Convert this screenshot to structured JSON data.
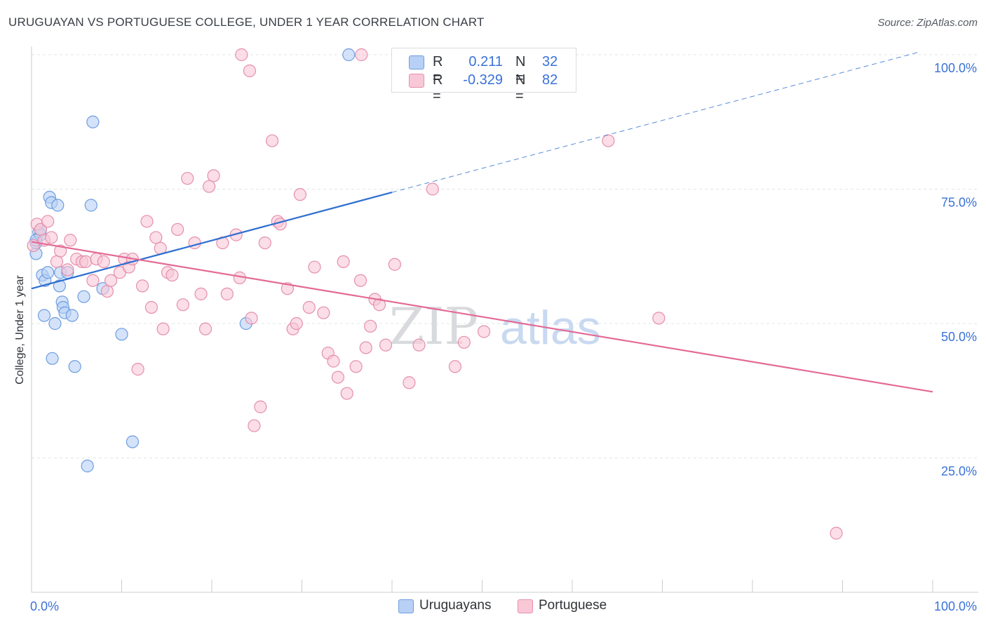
{
  "title": "URUGUAYAN VS PORTUGUESE COLLEGE, UNDER 1 YEAR CORRELATION CHART",
  "source": "Source: ZipAtlas.com",
  "watermark": {
    "part1": "ZIP",
    "part2": "atlas"
  },
  "colors": {
    "blue_fill": "#b8d0f5",
    "blue_stroke": "#6e9de0",
    "blue_line": "#2f6fd0",
    "pink_fill": "#f9c8d7",
    "pink_stroke": "#e58fac",
    "pink_line": "#e26a96",
    "axis_text": "#3a72d8",
    "grid": "#e2e4e8"
  },
  "legend": {
    "rows": [
      {
        "name": "Uruguayans",
        "r_label": "R =",
        "r_value": "0.211",
        "n_label": "N =",
        "n_value": "32"
      },
      {
        "name": "Portuguese",
        "r_label": "R =",
        "r_value": "-0.329",
        "n_label": "N =",
        "n_value": "82"
      }
    ]
  },
  "chart_data": {
    "type": "scatter",
    "title": "URUGUAYAN VS PORTUGUESE COLLEGE, UNDER 1 YEAR CORRELATION CHART",
    "xlabel": "",
    "ylabel": "College, Under 1 year",
    "xlim": [
      0,
      100
    ],
    "ylim": [
      0,
      100
    ],
    "x_tick_labels": [
      "0.0%",
      "100.0%"
    ],
    "y_tick_labels": [
      {
        "value": 100,
        "label": "100.0%"
      },
      {
        "value": 75,
        "label": "75.0%"
      },
      {
        "value": 50,
        "label": "50.0%"
      },
      {
        "value": 25,
        "label": "25.0%"
      }
    ],
    "grid": true,
    "series": [
      {
        "name": "Uruguayans",
        "r": 0.211,
        "n": 32,
        "trend": {
          "x0": 0,
          "y0": 56.5,
          "x1": 40,
          "y1": 74.4,
          "dash_to_x": 98.5,
          "dash_to_y": 100.5
        },
        "points": [
          [
            0.5,
            63
          ],
          [
            0.5,
            65
          ],
          [
            0.8,
            67
          ],
          [
            1.0,
            66.5
          ],
          [
            1.0,
            67.5
          ],
          [
            1.2,
            59
          ],
          [
            1.4,
            51.5
          ],
          [
            1.5,
            58
          ],
          [
            1.8,
            59.5
          ],
          [
            2.0,
            73.5
          ],
          [
            2.2,
            72.5
          ],
          [
            2.3,
            43.5
          ],
          [
            2.6,
            50
          ],
          [
            2.9,
            72
          ],
          [
            3.1,
            57
          ],
          [
            3.2,
            59.5
          ],
          [
            3.4,
            54
          ],
          [
            3.5,
            53
          ],
          [
            3.7,
            52
          ],
          [
            4.0,
            59.5
          ],
          [
            4.5,
            51.5
          ],
          [
            4.8,
            42
          ],
          [
            5.8,
            55
          ],
          [
            6.2,
            23.5
          ],
          [
            6.6,
            72
          ],
          [
            6.8,
            87.5
          ],
          [
            7.9,
            56.5
          ],
          [
            10.0,
            48
          ],
          [
            11.2,
            28
          ],
          [
            23.8,
            50
          ],
          [
            35.2,
            100
          ],
          [
            0.5,
            65.5
          ]
        ]
      },
      {
        "name": "Portuguese",
        "r": -0.329,
        "n": 82,
        "trend": {
          "x0": 0,
          "y0": 65.2,
          "x1": 100,
          "y1": 37.3
        },
        "points": [
          [
            0.2,
            64.5
          ],
          [
            0.6,
            68.5
          ],
          [
            1.0,
            67.5
          ],
          [
            1.4,
            65.5
          ],
          [
            1.8,
            69
          ],
          [
            2.2,
            66
          ],
          [
            2.8,
            61.5
          ],
          [
            3.2,
            63.5
          ],
          [
            4.0,
            60
          ],
          [
            4.3,
            65.5
          ],
          [
            5.0,
            62
          ],
          [
            5.6,
            61.5
          ],
          [
            6.0,
            61.5
          ],
          [
            6.8,
            58
          ],
          [
            7.2,
            62
          ],
          [
            8.0,
            61.5
          ],
          [
            8.4,
            56
          ],
          [
            8.8,
            58
          ],
          [
            9.8,
            59.5
          ],
          [
            10.3,
            62
          ],
          [
            10.8,
            60.5
          ],
          [
            11.2,
            62
          ],
          [
            11.8,
            41.5
          ],
          [
            12.3,
            57
          ],
          [
            12.8,
            69
          ],
          [
            13.3,
            53
          ],
          [
            13.8,
            66
          ],
          [
            14.3,
            64
          ],
          [
            14.6,
            49
          ],
          [
            15.1,
            59.5
          ],
          [
            15.6,
            59
          ],
          [
            16.2,
            67.5
          ],
          [
            16.8,
            53.5
          ],
          [
            17.3,
            77
          ],
          [
            18.1,
            65
          ],
          [
            18.8,
            55.5
          ],
          [
            19.3,
            49
          ],
          [
            19.7,
            75.5
          ],
          [
            20.2,
            77.5
          ],
          [
            21.2,
            65
          ],
          [
            21.7,
            55.5
          ],
          [
            22.7,
            66.5
          ],
          [
            23.1,
            58.5
          ],
          [
            23.3,
            100
          ],
          [
            24.2,
            97
          ],
          [
            24.7,
            31
          ],
          [
            25.4,
            34.5
          ],
          [
            25.9,
            65
          ],
          [
            26.7,
            84
          ],
          [
            27.3,
            69
          ],
          [
            28.4,
            56.5
          ],
          [
            29.0,
            49
          ],
          [
            29.4,
            50
          ],
          [
            29.8,
            74
          ],
          [
            30.8,
            53
          ],
          [
            31.4,
            60.5
          ],
          [
            32.4,
            52
          ],
          [
            32.9,
            44.5
          ],
          [
            33.5,
            43
          ],
          [
            34.0,
            40
          ],
          [
            34.6,
            61.5
          ],
          [
            35.0,
            37
          ],
          [
            36.0,
            42
          ],
          [
            36.5,
            58
          ],
          [
            37.1,
            45.5
          ],
          [
            37.6,
            49.5
          ],
          [
            38.1,
            54.5
          ],
          [
            38.6,
            53.5
          ],
          [
            39.3,
            46
          ],
          [
            40.3,
            61
          ],
          [
            43.0,
            46
          ],
          [
            44.5,
            75
          ],
          [
            47.0,
            42
          ],
          [
            48.0,
            46.5
          ],
          [
            50.2,
            48.5
          ],
          [
            64.0,
            84
          ],
          [
            69.6,
            51
          ],
          [
            89.3,
            11
          ],
          [
            36.6,
            100
          ],
          [
            27.6,
            68.5
          ],
          [
            41.9,
            39
          ],
          [
            24.4,
            51
          ]
        ]
      }
    ]
  }
}
